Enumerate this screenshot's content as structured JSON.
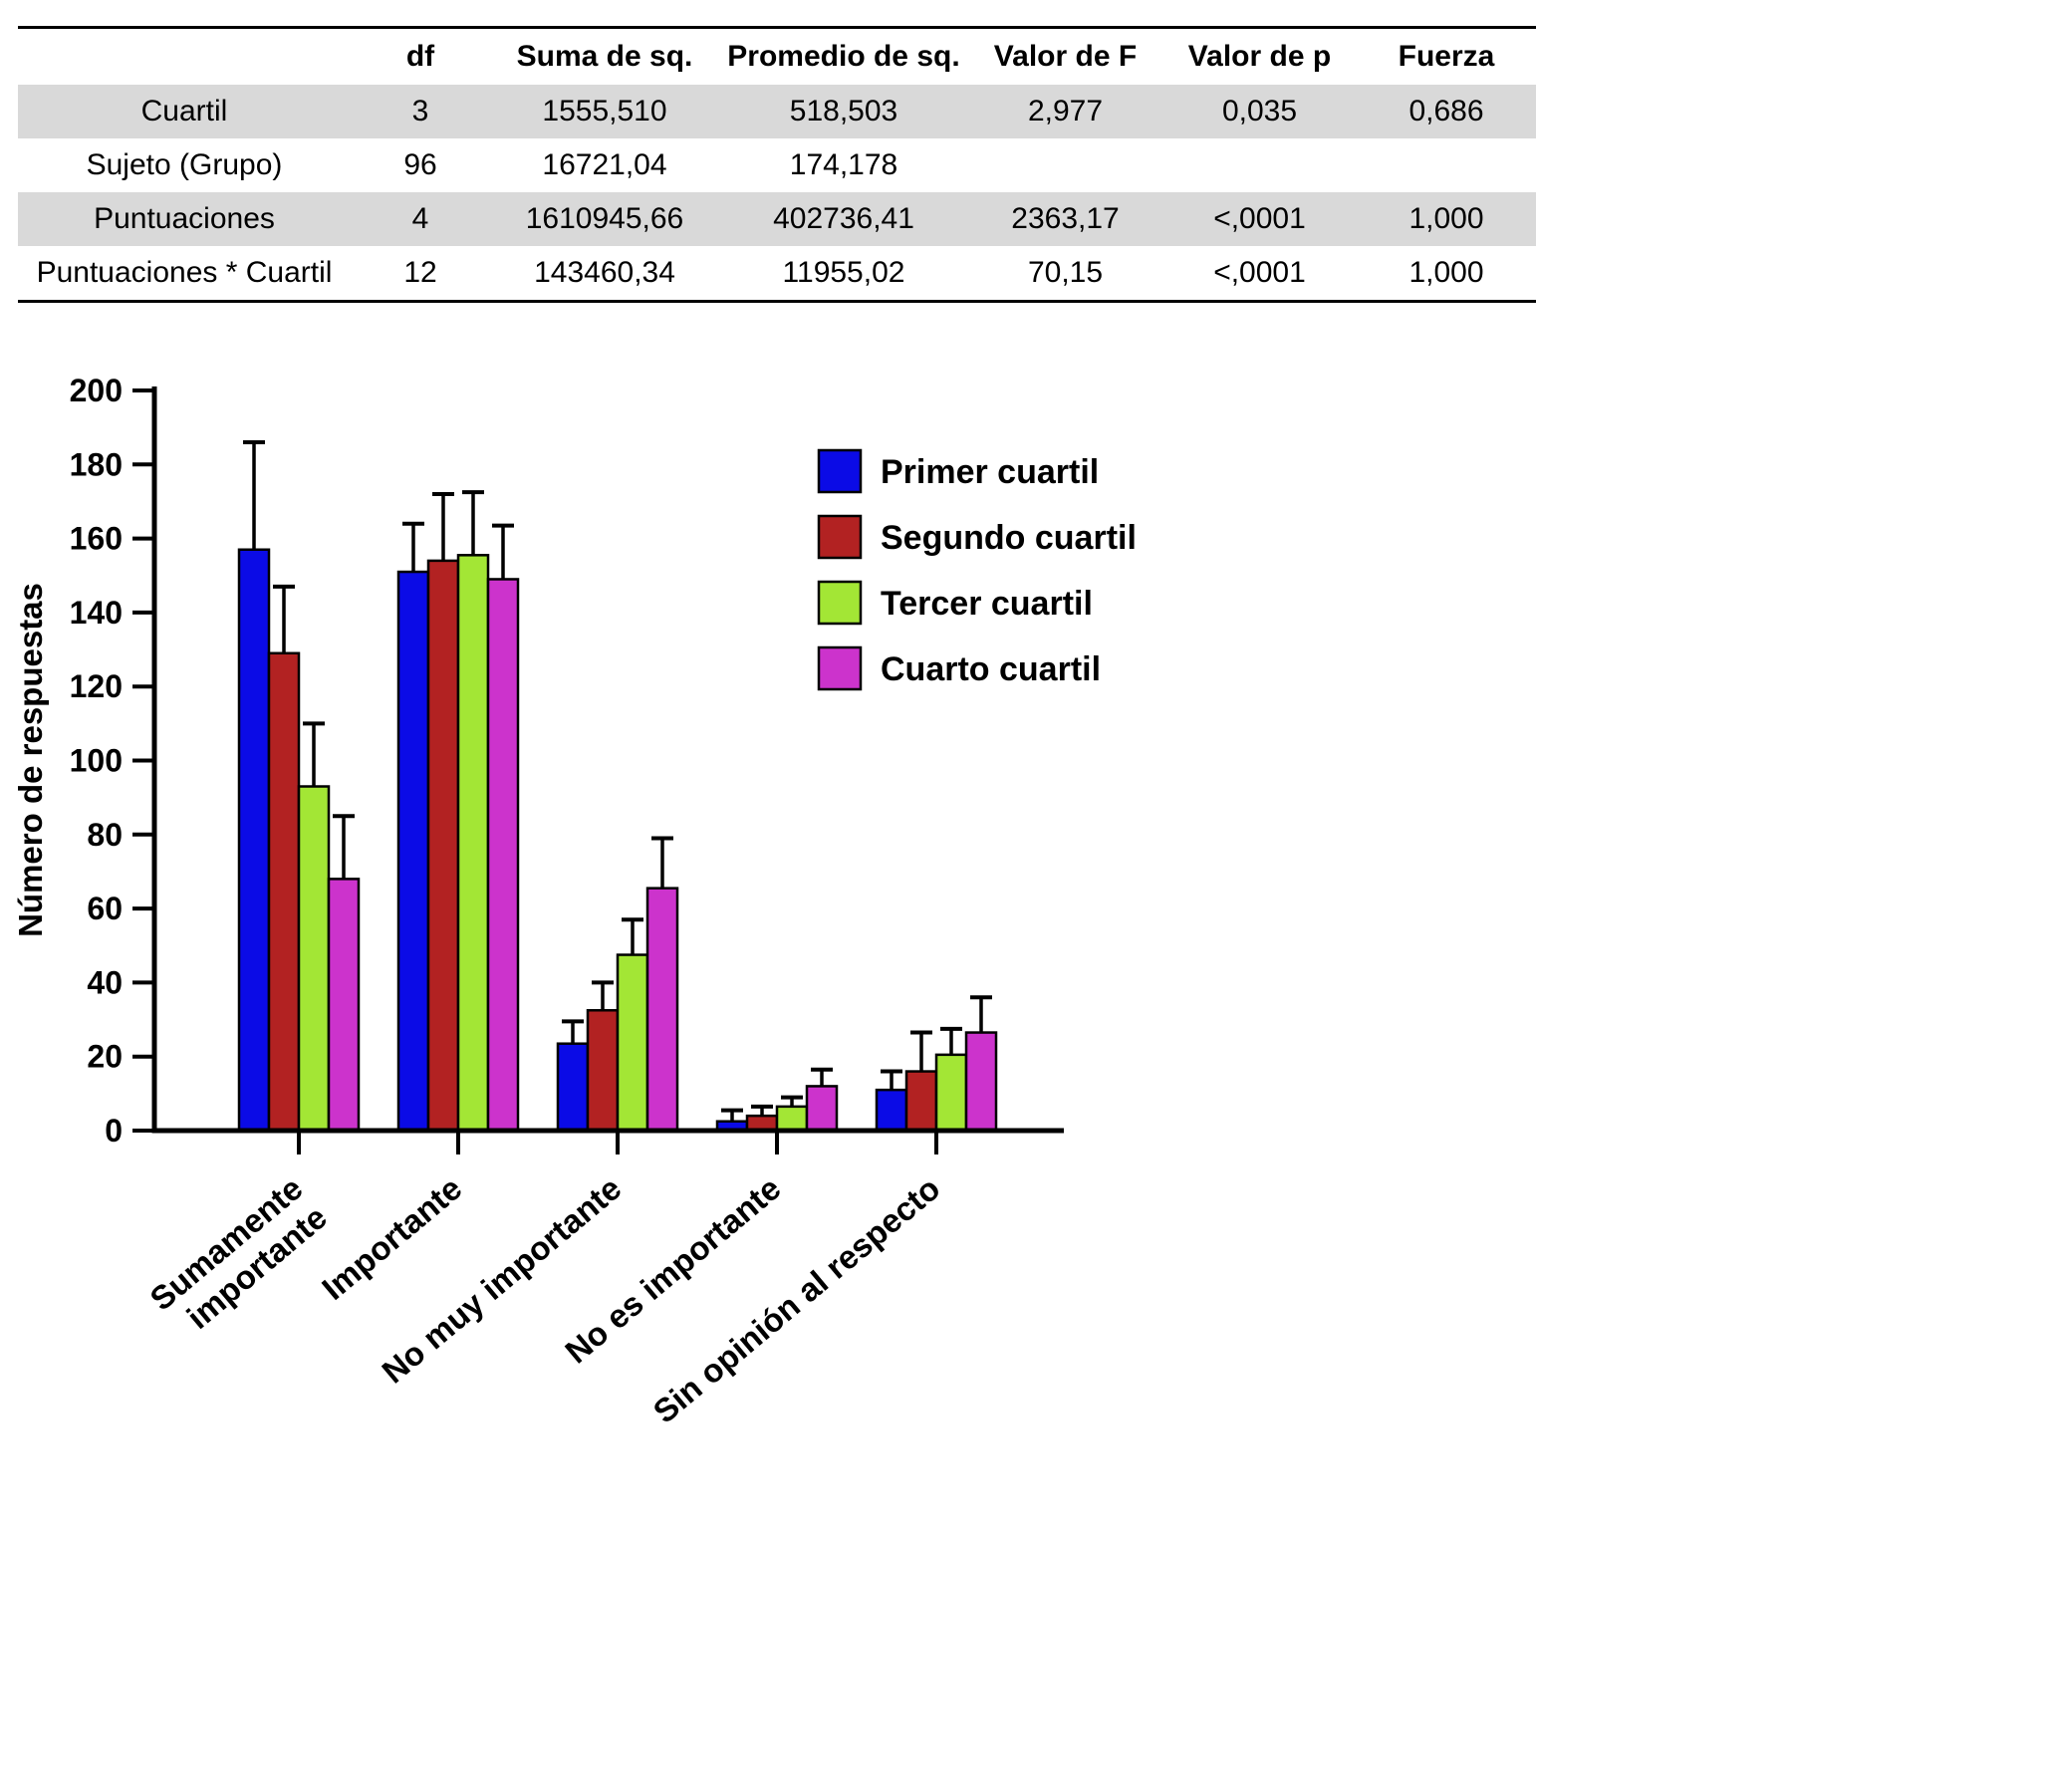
{
  "table": {
    "headers": [
      "",
      "df",
      "Suma de sq.",
      "Promedio de sq.",
      "Valor de F",
      "Valor de p",
      "Fuerza"
    ],
    "rows": [
      {
        "label": "Cuartil",
        "values": [
          "3",
          "1555,510",
          "518,503",
          "2,977",
          "0,035",
          "0,686"
        ],
        "shaded": true
      },
      {
        "label": "Sujeto (Grupo)",
        "values": [
          "96",
          "16721,04",
          "174,178",
          "",
          "",
          ""
        ],
        "shaded": false
      },
      {
        "label": "Puntuaciones",
        "values": [
          "4",
          "1610945,66",
          "402736,41",
          "2363,17",
          "<,0001",
          "1,000"
        ],
        "shaded": true
      },
      {
        "label": "Puntuaciones * Cuartil",
        "values": [
          "12",
          "143460,34",
          "11955,02",
          "70,15",
          "<,0001",
          "1,000"
        ],
        "shaded": false
      }
    ]
  },
  "chart_data": {
    "type": "bar",
    "title": "",
    "xlabel": "",
    "ylabel": "Número de respuestas",
    "ylim": [
      0,
      200
    ],
    "ytick_step": 20,
    "grid": false,
    "legend_position": "inside upper right",
    "categories": [
      "Sumamente\nimportante",
      "Importante",
      "No muy importante",
      "No es importante",
      "Sin opinión al respecto"
    ],
    "series": [
      {
        "name": "Primer cuartil",
        "color": "#0b0be6",
        "values": [
          157,
          151,
          23.5,
          2.5,
          11
        ],
        "errors": [
          29,
          13,
          6,
          3,
          5
        ]
      },
      {
        "name": "Segundo cuartil",
        "color": "#b22222",
        "values": [
          129,
          154,
          32.5,
          4,
          16
        ],
        "errors": [
          18,
          18,
          7.5,
          2.5,
          10.5
        ]
      },
      {
        "name": "Tercer cuartil",
        "color": "#a3e635",
        "values": [
          93,
          155.5,
          47.5,
          6.5,
          20.5
        ],
        "errors": [
          17,
          17,
          9.5,
          2.5,
          7
        ]
      },
      {
        "name": "Cuarto cuartil",
        "color": "#cc33cc",
        "values": [
          68,
          149,
          65.5,
          12,
          26.5
        ],
        "errors": [
          17,
          14.5,
          13.5,
          4.5,
          9.5
        ]
      }
    ]
  }
}
